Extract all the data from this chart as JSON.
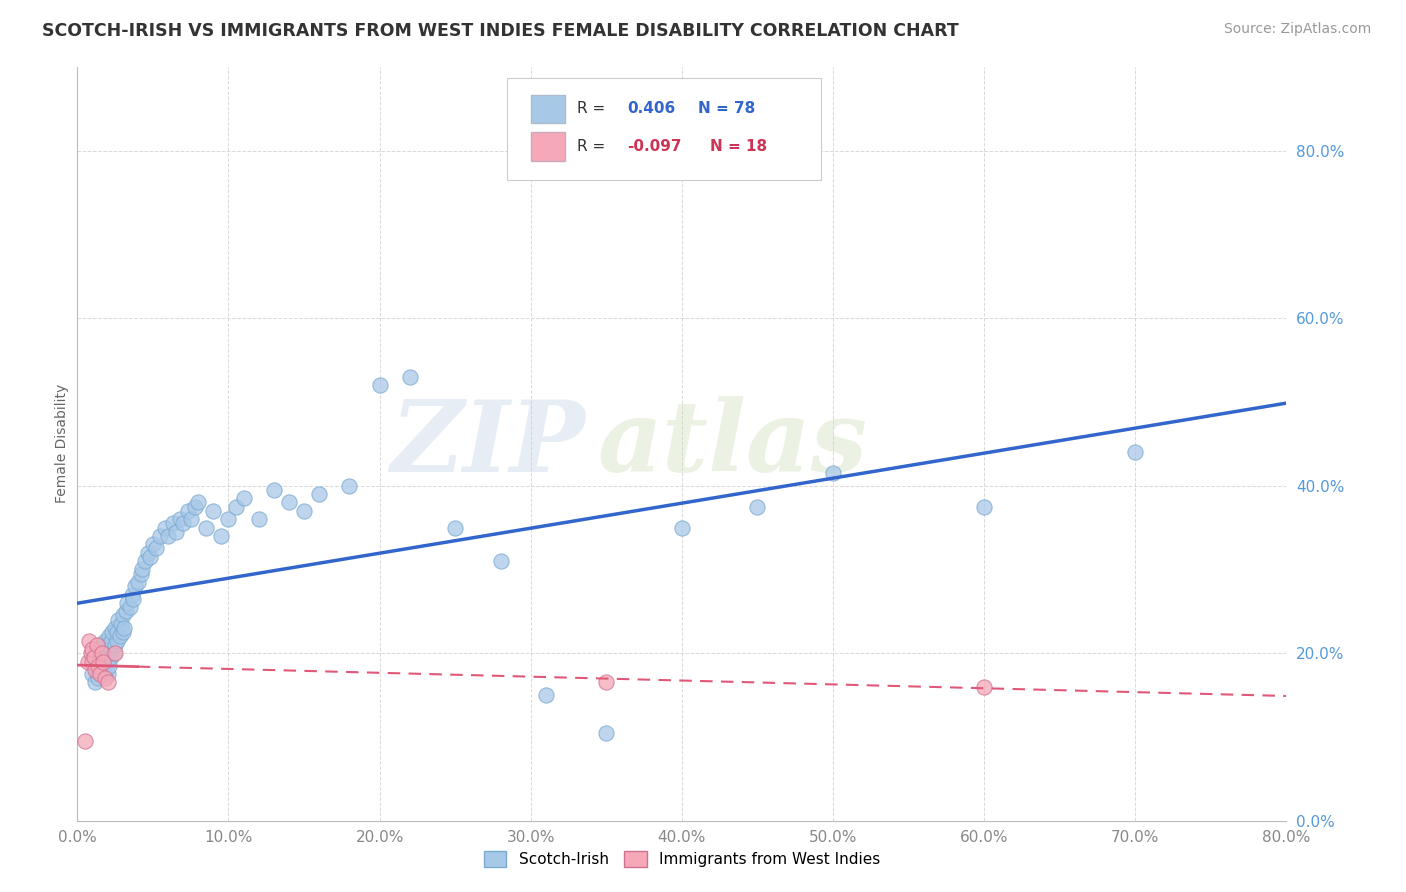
{
  "title": "SCOTCH-IRISH VS IMMIGRANTS FROM WEST INDIES FEMALE DISABILITY CORRELATION CHART",
  "source": "Source: ZipAtlas.com",
  "ylabel": "Female Disability",
  "xlim": [
    0.0,
    0.8
  ],
  "ylim": [
    0.0,
    0.9
  ],
  "yticks": [
    0.0,
    0.2,
    0.4,
    0.6,
    0.8
  ],
  "xticks": [
    0.0,
    0.1,
    0.2,
    0.3,
    0.4,
    0.5,
    0.6,
    0.7,
    0.8
  ],
  "background_color": "#ffffff",
  "watermark_zip": "ZIP",
  "watermark_atlas": "atlas",
  "color_blue": "#a8c8e8",
  "color_pink": "#f4a8b8",
  "line_blue": "#3366cc",
  "line_pink": "#e05878",
  "grid_color": "#d0d0d0",
  "ytick_color": "#5599dd",
  "xtick_color": "#888888",
  "scotch_irish_x": [
    0.01,
    0.012,
    0.013,
    0.014,
    0.015,
    0.015,
    0.016,
    0.017,
    0.018,
    0.018,
    0.019,
    0.02,
    0.02,
    0.02,
    0.021,
    0.021,
    0.022,
    0.022,
    0.023,
    0.024,
    0.025,
    0.025,
    0.026,
    0.026,
    0.027,
    0.028,
    0.029,
    0.03,
    0.03,
    0.031,
    0.032,
    0.033,
    0.035,
    0.036,
    0.037,
    0.038,
    0.04,
    0.042,
    0.043,
    0.045,
    0.047,
    0.048,
    0.05,
    0.052,
    0.055,
    0.058,
    0.06,
    0.063,
    0.065,
    0.068,
    0.07,
    0.073,
    0.075,
    0.078,
    0.08,
    0.085,
    0.09,
    0.095,
    0.1,
    0.105,
    0.11,
    0.12,
    0.13,
    0.14,
    0.15,
    0.16,
    0.18,
    0.2,
    0.22,
    0.25,
    0.28,
    0.31,
    0.35,
    0.4,
    0.45,
    0.5,
    0.6,
    0.7
  ],
  "scotch_irish_y": [
    0.175,
    0.165,
    0.18,
    0.17,
    0.195,
    0.21,
    0.185,
    0.2,
    0.215,
    0.175,
    0.19,
    0.2,
    0.21,
    0.175,
    0.22,
    0.185,
    0.195,
    0.215,
    0.225,
    0.2,
    0.21,
    0.23,
    0.215,
    0.225,
    0.24,
    0.22,
    0.235,
    0.225,
    0.245,
    0.23,
    0.25,
    0.26,
    0.255,
    0.27,
    0.265,
    0.28,
    0.285,
    0.295,
    0.3,
    0.31,
    0.32,
    0.315,
    0.33,
    0.325,
    0.34,
    0.35,
    0.34,
    0.355,
    0.345,
    0.36,
    0.355,
    0.37,
    0.36,
    0.375,
    0.38,
    0.35,
    0.37,
    0.34,
    0.36,
    0.375,
    0.385,
    0.36,
    0.395,
    0.38,
    0.37,
    0.39,
    0.4,
    0.52,
    0.53,
    0.35,
    0.31,
    0.15,
    0.105,
    0.35,
    0.375,
    0.415,
    0.375,
    0.44
  ],
  "west_indies_x": [
    0.005,
    0.007,
    0.008,
    0.009,
    0.01,
    0.01,
    0.011,
    0.012,
    0.013,
    0.014,
    0.015,
    0.016,
    0.017,
    0.018,
    0.02,
    0.025,
    0.35,
    0.6
  ],
  "west_indies_y": [
    0.095,
    0.19,
    0.215,
    0.2,
    0.19,
    0.205,
    0.195,
    0.18,
    0.21,
    0.185,
    0.175,
    0.2,
    0.19,
    0.17,
    0.165,
    0.2,
    0.165,
    0.16
  ]
}
